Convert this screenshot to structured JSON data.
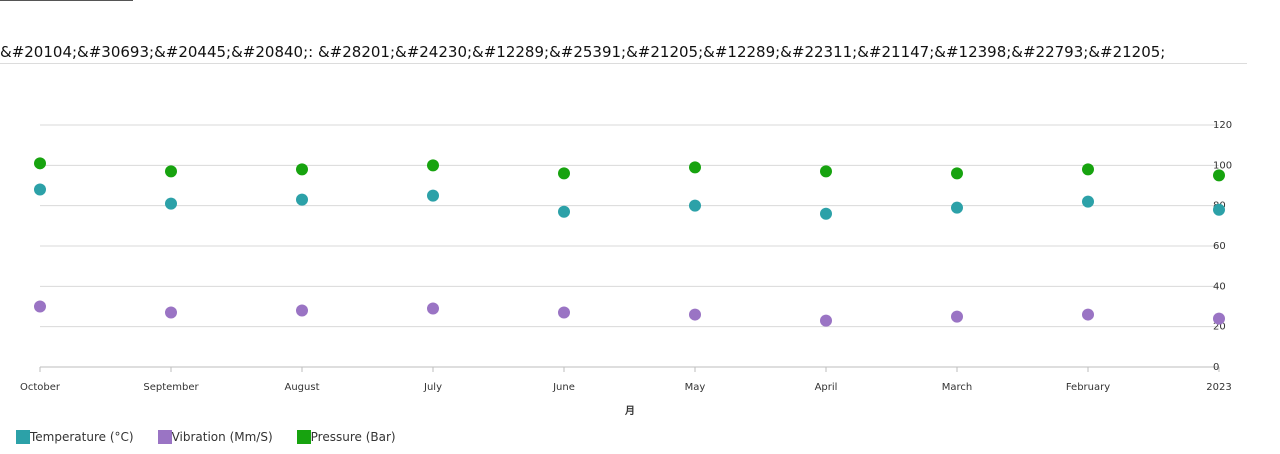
{
  "page": {
    "title": "&#20104;&#30693;&#20445;&#20840;: &#28201;&#24230;&#12289;&#25391;&#21205;&#12289;&#22311;&#21147;&#12398;&#22793;&#21205;"
  },
  "chart_data": {
    "type": "scatter",
    "categories": [
      "October",
      "September",
      "August",
      "July",
      "June",
      "May",
      "April",
      "March",
      "February",
      "2023"
    ],
    "xlabel": "月",
    "ylabel": "",
    "ylim": [
      0,
      120
    ],
    "yticks": [
      0,
      20,
      40,
      60,
      80,
      100,
      120
    ],
    "y_axis_side": "right",
    "grid": true,
    "legend_position": "bottom-left",
    "series": [
      {
        "name": "Temperature (°C)",
        "color": "#2ca1a8",
        "values": [
          88,
          81,
          83,
          85,
          77,
          80,
          76,
          79,
          82,
          78
        ]
      },
      {
        "name": "Vibration (Mm/S)",
        "color": "#9a74c4",
        "values": [
          30,
          27,
          28,
          29,
          27,
          26,
          23,
          25,
          26,
          24
        ]
      },
      {
        "name": "Pressure (Bar)",
        "color": "#17a30f",
        "values": [
          101,
          97,
          98,
          100,
          96,
          99,
          97,
          96,
          98,
          95
        ]
      }
    ]
  }
}
